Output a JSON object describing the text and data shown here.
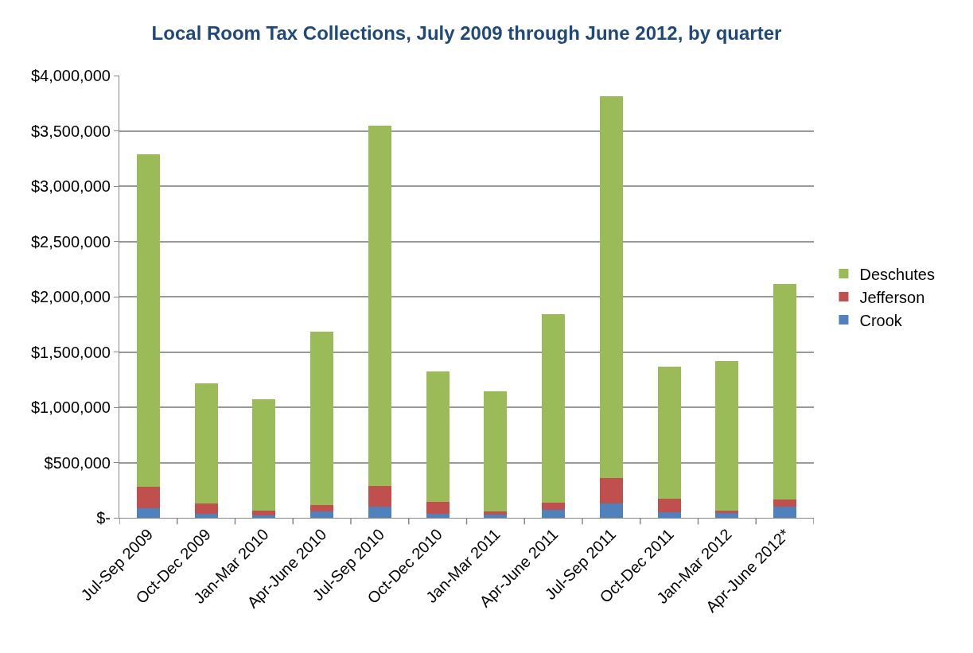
{
  "chart_data": {
    "type": "bar",
    "stacked": true,
    "title": "Local Room Tax Collections, July 2009 through June 2012, by quarter",
    "categories": [
      "Jul-Sep 2009",
      "Oct-Dec 2009",
      "Jan-Mar 2010",
      "Apr-June 2010",
      "Jul-Sep 2010",
      "Oct-Dec 2010",
      "Jan-Mar 2011",
      "Apr-June 2011",
      "Jul-Sep 2011",
      "Oct-Dec 2011",
      "Jan-Mar 2012",
      "Apr-June 2012*"
    ],
    "series": [
      {
        "name": "Crook",
        "color": "#4f81bd",
        "values": [
          83000,
          34000,
          19000,
          61000,
          100000,
          36000,
          29000,
          70000,
          129000,
          49000,
          46000,
          100000
        ]
      },
      {
        "name": "Jefferson",
        "color": "#c0504d",
        "values": [
          196000,
          99000,
          44000,
          51000,
          186000,
          105000,
          32000,
          68000,
          230000,
          121000,
          22000,
          67000
        ]
      },
      {
        "name": "Deschutes",
        "color": "#9bbb59",
        "values": [
          3010000,
          1080000,
          1010000,
          1575000,
          3264000,
          1185000,
          1084000,
          1702000,
          3452000,
          1200000,
          1352000,
          1948000
        ]
      }
    ],
    "ylim": [
      0,
      4000000
    ],
    "yticks": [
      {
        "value": 0,
        "label": "$-"
      },
      {
        "value": 500000,
        "label": "$500,000"
      },
      {
        "value": 1000000,
        "label": "$1,000,000"
      },
      {
        "value": 1500000,
        "label": "$1,500,000"
      },
      {
        "value": 2000000,
        "label": "$2,000,000"
      },
      {
        "value": 2500000,
        "label": "$2,500,000"
      },
      {
        "value": 3000000,
        "label": "$3,000,000"
      },
      {
        "value": 3500000,
        "label": "$3,500,000"
      },
      {
        "value": 4000000,
        "label": "$4,000,000"
      }
    ],
    "grid": "y",
    "legend": "right"
  }
}
